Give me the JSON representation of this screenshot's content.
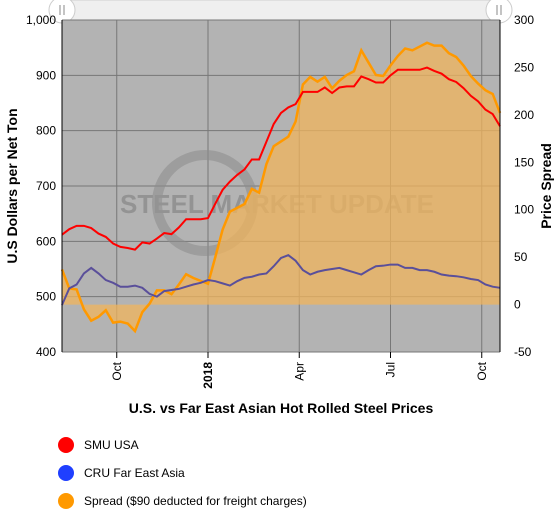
{
  "chart_data": {
    "type": "line",
    "title": "U.S. vs Far East Asian Hot Rolled Steel Prices",
    "ylabel_left": "U.S Dollars per Net Ton",
    "ylabel_right": "Price Spread",
    "ylim_left": [
      400,
      1000
    ],
    "ylim_right": [
      -50,
      300
    ],
    "yticks_left": [
      "400",
      "500",
      "600",
      "700",
      "800",
      "900",
      "1,000"
    ],
    "yticks_right": [
      "-50",
      "0",
      "50",
      "100",
      "150",
      "200",
      "250",
      "300"
    ],
    "xticks": [
      "Oct",
      "2018",
      "Apr",
      "Jul",
      "Oct"
    ],
    "xtick_bold": [
      false,
      true,
      false,
      false,
      false
    ],
    "xtick_pos": [
      2017.75,
      2018.0,
      2018.25,
      2018.5,
      2018.75
    ],
    "xlim": [
      2017.6,
      2018.8
    ],
    "watermark": "STEEL MARKET UPDATE",
    "series": [
      {
        "name": "SMU USA",
        "color": "#ff0000",
        "x": [
          2017.6,
          2017.62,
          2017.64,
          2017.66,
          2017.68,
          2017.7,
          2017.72,
          2017.74,
          2017.76,
          2017.78,
          2017.8,
          2017.82,
          2017.84,
          2017.86,
          2017.88,
          2017.9,
          2017.92,
          2017.94,
          2017.96,
          2017.98,
          2018.0,
          2018.02,
          2018.04,
          2018.06,
          2018.08,
          2018.1,
          2018.12,
          2018.14,
          2018.16,
          2018.18,
          2018.2,
          2018.22,
          2018.24,
          2018.26,
          2018.28,
          2018.3,
          2018.32,
          2018.34,
          2018.36,
          2018.38,
          2018.4,
          2018.42,
          2018.44,
          2018.46,
          2018.48,
          2018.5,
          2018.52,
          2018.54,
          2018.56,
          2018.58,
          2018.6,
          2018.62,
          2018.64,
          2018.66,
          2018.68,
          2018.7,
          2018.72,
          2018.74,
          2018.76,
          2018.78,
          2018.8
        ],
        "values": [
          612,
          622,
          628,
          628,
          624,
          614,
          608,
          596,
          590,
          588,
          585,
          598,
          596,
          605,
          615,
          613,
          625,
          640,
          640,
          640,
          642,
          668,
          693,
          708,
          720,
          730,
          748,
          748,
          780,
          812,
          832,
          842,
          848,
          870,
          870,
          870,
          878,
          868,
          878,
          880,
          880,
          898,
          893,
          887,
          887,
          900,
          910,
          910,
          910,
          910,
          914,
          908,
          903,
          893,
          888,
          877,
          863,
          853,
          838,
          830,
          808
        ]
      },
      {
        "name": "CRU Far East Asia",
        "color": "#1f3fff",
        "x": [
          2017.6,
          2017.62,
          2017.64,
          2017.66,
          2017.68,
          2017.7,
          2017.72,
          2017.74,
          2017.76,
          2017.78,
          2017.8,
          2017.82,
          2017.84,
          2017.86,
          2017.88,
          2017.9,
          2017.92,
          2017.94,
          2017.96,
          2017.98,
          2018.0,
          2018.02,
          2018.04,
          2018.06,
          2018.08,
          2018.1,
          2018.12,
          2018.14,
          2018.16,
          2018.18,
          2018.2,
          2018.22,
          2018.24,
          2018.26,
          2018.28,
          2018.3,
          2018.32,
          2018.34,
          2018.36,
          2018.38,
          2018.4,
          2018.42,
          2018.44,
          2018.46,
          2018.48,
          2018.5,
          2018.52,
          2018.54,
          2018.56,
          2018.58,
          2018.6,
          2018.62,
          2018.64,
          2018.66,
          2018.68,
          2018.7,
          2018.72,
          2018.74,
          2018.76,
          2018.78,
          2018.8
        ],
        "values": [
          485,
          515,
          522,
          542,
          552,
          542,
          530,
          525,
          518,
          518,
          520,
          516,
          505,
          500,
          510,
          512,
          514,
          518,
          522,
          525,
          530,
          528,
          524,
          520,
          528,
          534,
          536,
          540,
          542,
          555,
          570,
          575,
          565,
          548,
          540,
          545,
          548,
          550,
          552,
          548,
          544,
          540,
          548,
          555,
          556,
          558,
          558,
          552,
          552,
          548,
          548,
          545,
          540,
          538,
          537,
          535,
          532,
          530,
          522,
          518,
          516
        ]
      },
      {
        "name": "Spread ($90 deducted for freight charges)",
        "color": "#ff9900",
        "x": [
          2017.6,
          2017.62,
          2017.64,
          2017.66,
          2017.68,
          2017.7,
          2017.72,
          2017.74,
          2017.76,
          2017.78,
          2017.8,
          2017.82,
          2017.84,
          2017.86,
          2017.88,
          2017.9,
          2017.92,
          2017.94,
          2017.96,
          2017.98,
          2018.0,
          2018.02,
          2018.04,
          2018.06,
          2018.08,
          2018.1,
          2018.12,
          2018.14,
          2018.16,
          2018.18,
          2018.2,
          2018.22,
          2018.24,
          2018.26,
          2018.28,
          2018.3,
          2018.32,
          2018.34,
          2018.36,
          2018.38,
          2018.4,
          2018.42,
          2018.44,
          2018.46,
          2018.48,
          2018.5,
          2018.52,
          2018.54,
          2018.56,
          2018.58,
          2018.6,
          2018.62,
          2018.64,
          2018.66,
          2018.68,
          2018.7,
          2018.72,
          2018.74,
          2018.76,
          2018.78,
          2018.8
        ],
        "values": [
          37,
          17,
          16,
          -5,
          -17,
          -13,
          -6,
          -19,
          -18,
          -20,
          -28,
          -8,
          1,
          15,
          15,
          11,
          21,
          32,
          28,
          25,
          22,
          50,
          79,
          98,
          102,
          106,
          122,
          118,
          148,
          167,
          172,
          177,
          193,
          232,
          240,
          235,
          240,
          228,
          236,
          242,
          246,
          268,
          255,
          242,
          241,
          252,
          262,
          270,
          268,
          272,
          276,
          273,
          273,
          265,
          261,
          252,
          241,
          233,
          226,
          222,
          202
        ]
      }
    ]
  },
  "legend": [
    {
      "label": "SMU USA",
      "color": "#ff0000"
    },
    {
      "label": "CRU Far East Asia",
      "color": "#1f3fff"
    },
    {
      "label": "Spread ($90 deducted for freight charges)",
      "color": "#ff9900"
    }
  ],
  "scrollbar": {
    "left_handle_icon": "grip-icon",
    "right_handle_icon": "grip-icon"
  }
}
